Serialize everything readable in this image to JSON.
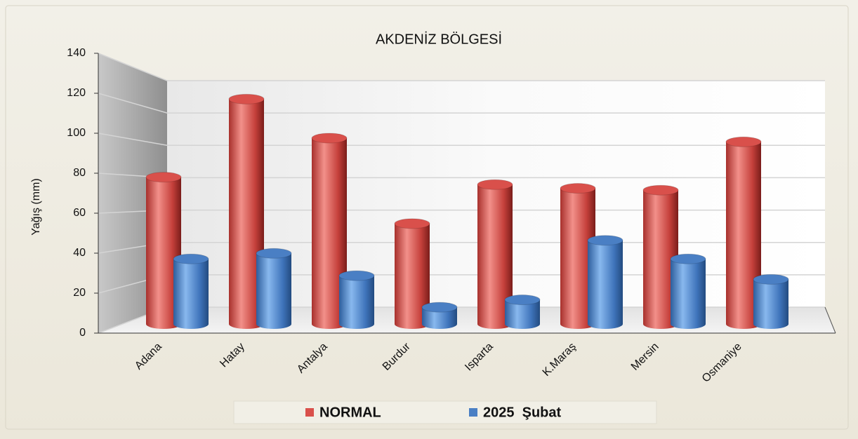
{
  "chart_data": {
    "type": "bar",
    "title": "AKDENİZ BÖLGESİ",
    "y_label": "Yağış (mm)",
    "categories": [
      "Adana",
      "Hatay",
      "Antalya",
      "Burdur",
      "Isparta",
      "K.Maraş",
      "Mersin",
      "Osmaniye"
    ],
    "series": [
      {
        "name": "NORMAL",
        "color": "#d9504b",
        "values": [
          79,
          121,
          100,
          54,
          75,
          73,
          72,
          98
        ]
      },
      {
        "name": "2025  Şubat",
        "color": "#4a7fc4",
        "values": [
          35,
          38,
          26,
          9,
          13,
          45,
          35,
          24
        ]
      }
    ],
    "ylim": [
      0,
      140
    ],
    "yticks": [
      0,
      20,
      40,
      60,
      80,
      100,
      120,
      140
    ],
    "grid": true
  }
}
